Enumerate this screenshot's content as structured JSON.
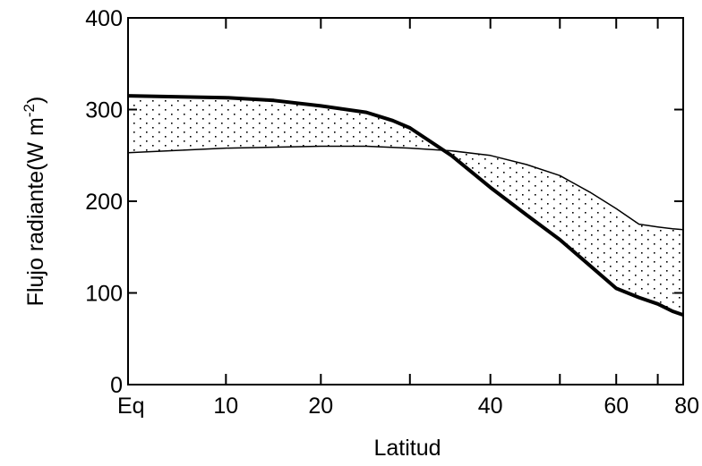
{
  "chart_data": {
    "type": "line",
    "title": "",
    "xlabel": "Latitud",
    "ylabel": "Flujo radiante(W m",
    "ylabel_sup": "-2",
    "ylabel_close": ")",
    "ylim": [
      0,
      400
    ],
    "y_ticks": [
      0,
      100,
      200,
      300,
      400
    ],
    "x_axis_scale": "sine of latitude",
    "x_tick_labels": [
      {
        "label": "Eq",
        "value": 0
      },
      {
        "label": "10",
        "value": 10
      },
      {
        "label": "20",
        "value": 20
      },
      {
        "label": "40",
        "value": 40
      },
      {
        "label": "60",
        "value": 60
      },
      {
        "label": "80",
        "value": 80
      }
    ],
    "x_minor_ticks": [
      30,
      50,
      70
    ],
    "grid": false,
    "fill_between": "stippled region between the two curves",
    "series": [
      {
        "line_style": "thick",
        "x": [
          0,
          10,
          15,
          20,
          25,
          28,
          30,
          35,
          40,
          45,
          50,
          55,
          60,
          65,
          70,
          75,
          80
        ],
        "y": [
          315,
          313,
          310,
          304,
          297,
          288,
          280,
          250,
          215,
          185,
          158,
          130,
          105,
          95,
          88,
          80,
          76
        ]
      },
      {
        "line_style": "thin",
        "x": [
          0,
          10,
          20,
          25,
          30,
          35,
          40,
          45,
          50,
          55,
          60,
          65,
          70,
          75,
          80
        ],
        "y": [
          253,
          258,
          260,
          260,
          258,
          255,
          250,
          240,
          228,
          210,
          192,
          175,
          172,
          170,
          169
        ]
      }
    ]
  }
}
